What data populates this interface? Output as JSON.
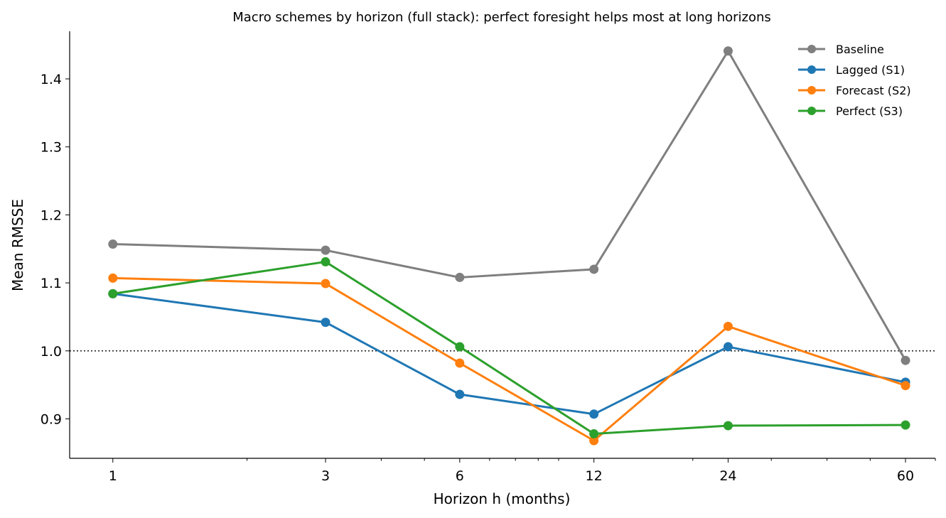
{
  "chart_data": {
    "type": "line",
    "title": "Macro schemes by horizon (full stack): perfect foresight helps most at long horizons",
    "xlabel": "Horizon h (months)",
    "ylabel": "Mean RMSSE",
    "x_scale": "log",
    "x": [
      1,
      3,
      6,
      12,
      24,
      60
    ],
    "x_tick_labels": [
      "1",
      "3",
      "6",
      "12",
      "24",
      "60"
    ],
    "xlim": [
      0.8,
      70
    ],
    "ylim": [
      0.842,
      1.47
    ],
    "y_ticks": [
      0.9,
      1.0,
      1.1,
      1.2,
      1.3,
      1.4
    ],
    "y_tick_labels": [
      "0.9",
      "1.0",
      "1.1",
      "1.2",
      "1.3",
      "1.4"
    ],
    "reference_line": {
      "y": 1.0,
      "style": "dotted",
      "color": "#000000"
    },
    "grid": false,
    "legend": {
      "placement": "top-right"
    },
    "series": [
      {
        "name": "Baseline",
        "color": "#7f7f7f",
        "values": [
          1.157,
          1.148,
          1.108,
          1.12,
          1.441,
          0.986
        ]
      },
      {
        "name": "Lagged (S1)",
        "color": "#1f77b4",
        "values": [
          1.084,
          1.042,
          0.936,
          0.907,
          1.006,
          0.954
        ]
      },
      {
        "name": "Forecast (S2)",
        "color": "#ff7f0e",
        "values": [
          1.107,
          1.099,
          0.982,
          0.868,
          1.036,
          0.949
        ]
      },
      {
        "name": "Perfect (S3)",
        "color": "#2ca02c",
        "values": [
          1.084,
          1.131,
          1.006,
          0.878,
          0.89,
          0.891
        ]
      }
    ]
  }
}
